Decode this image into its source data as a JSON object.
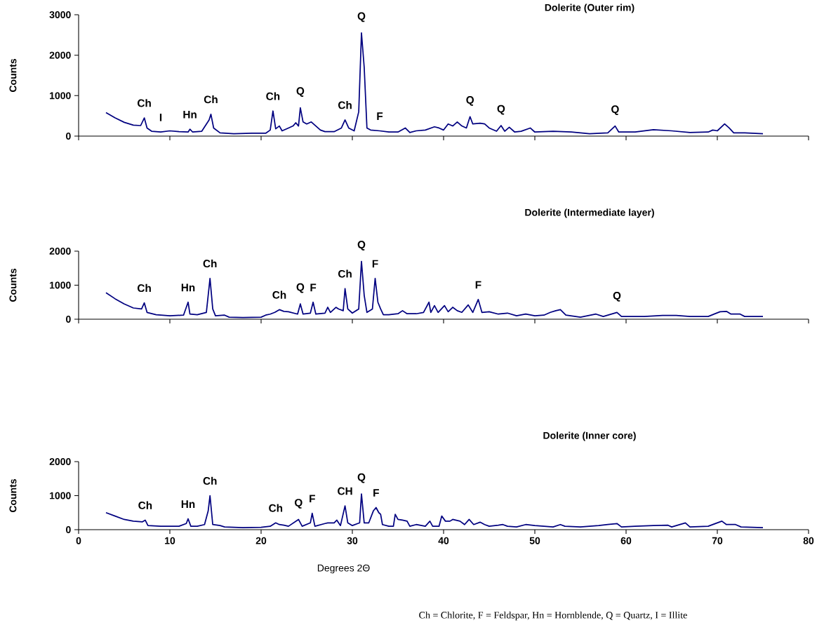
{
  "chart_data": [
    {
      "type": "line",
      "title": "Dolerite (Outer rim)",
      "ylabel": "Counts",
      "xlim": [
        0,
        80
      ],
      "xticks": [
        0,
        10,
        20,
        30,
        40,
        50,
        60,
        70,
        80
      ],
      "ylim": [
        0,
        3000
      ],
      "yticks": [
        0,
        1000,
        2000,
        3000
      ],
      "tick_labels": "y",
      "series": [
        {
          "color": "#000080",
          "x": [
            3,
            4,
            5,
            6,
            6.8,
            7.2,
            7.5,
            8,
            9,
            10,
            11,
            12,
            12.2,
            12.5,
            13.5,
            14.3,
            14.5,
            14.8,
            15.5,
            17,
            19,
            20.5,
            21,
            21.3,
            21.6,
            22,
            22.3,
            23,
            23.5,
            23.8,
            24.1,
            24.3,
            24.6,
            25,
            25.5,
            26,
            26.5,
            27,
            28,
            28.8,
            29.2,
            29.6,
            30.2,
            30.7,
            31.0,
            31.3,
            31.6,
            32,
            33,
            34,
            35,
            35.8,
            36.3,
            37,
            38,
            39,
            39.5,
            40,
            40.5,
            41,
            41.5,
            42,
            42.5,
            42.9,
            43.2,
            44,
            44.5,
            45,
            45.8,
            46.3,
            46.7,
            47.2,
            47.8,
            48.5,
            49.5,
            50,
            52,
            54,
            56,
            58,
            58.8,
            59.2,
            61,
            63,
            65,
            67,
            69,
            69.5,
            70,
            70.8,
            71.3,
            71.8,
            73,
            75
          ],
          "values": [
            580,
            450,
            340,
            270,
            260,
            450,
            200,
            120,
            100,
            130,
            110,
            100,
            170,
            100,
            120,
            400,
            540,
            200,
            80,
            60,
            70,
            70,
            150,
            620,
            180,
            250,
            130,
            200,
            250,
            330,
            250,
            700,
            350,
            300,
            350,
            250,
            150,
            110,
            110,
            200,
            400,
            200,
            130,
            600,
            2550,
            1700,
            200,
            150,
            130,
            100,
            100,
            200,
            90,
            130,
            150,
            230,
            200,
            150,
            300,
            250,
            350,
            250,
            200,
            480,
            300,
            320,
            300,
            200,
            120,
            260,
            120,
            220,
            100,
            120,
            200,
            100,
            120,
            100,
            60,
            80,
            250,
            100,
            100,
            160,
            130,
            90,
            100,
            150,
            130,
            300,
            200,
            80,
            80,
            60
          ]
        }
      ],
      "annotations": [
        {
          "text": "Ch",
          "x": 7.2,
          "y": 450
        },
        {
          "text": "I",
          "x": 9,
          "y": 100
        },
        {
          "text": "Hn",
          "x": 12.2,
          "y": 170
        },
        {
          "text": "Ch",
          "x": 14.5,
          "y": 540
        },
        {
          "text": "Ch",
          "x": 21.3,
          "y": 620
        },
        {
          "text": "Q",
          "x": 24.3,
          "y": 700
        },
        {
          "text": "Ch",
          "x": 29.2,
          "y": 400
        },
        {
          "text": "Q",
          "x": 31.0,
          "y": 2550
        },
        {
          "text": "F",
          "x": 33,
          "y": 130
        },
        {
          "text": "Q",
          "x": 42.9,
          "y": 480
        },
        {
          "text": "Q",
          "x": 46.3,
          "y": 260
        },
        {
          "text": "Q",
          "x": 58.8,
          "y": 250
        }
      ]
    },
    {
      "type": "line",
      "title": "Dolerite (Intermediate layer)",
      "ylabel": "Counts",
      "xlim": [
        0,
        80
      ],
      "xticks": [
        0,
        10,
        20,
        30,
        40,
        50,
        60,
        70,
        80
      ],
      "ylim": [
        0,
        2000
      ],
      "yticks": [
        0,
        1000,
        2000
      ],
      "tick_labels": "y",
      "series": [
        {
          "color": "#000080",
          "x": [
            3,
            4,
            5,
            6,
            6.9,
            7.2,
            7.5,
            8.5,
            10,
            11.5,
            12,
            12.2,
            13,
            14,
            14.4,
            14.7,
            15,
            16,
            16.5,
            18,
            20,
            20.5,
            21,
            21.5,
            22,
            22.5,
            23,
            24,
            24.3,
            24.6,
            25.4,
            25.7,
            26,
            27,
            27.3,
            27.6,
            28.2,
            28.5,
            29,
            29.2,
            29.5,
            30,
            30.7,
            31.0,
            31.3,
            31.6,
            32.2,
            32.5,
            32.8,
            33.1,
            33.4,
            34,
            35,
            35.5,
            36,
            37,
            37.8,
            38.4,
            38.6,
            39,
            39.4,
            40.1,
            40.5,
            41,
            41.5,
            42,
            42.7,
            43.2,
            43.8,
            44.2,
            45,
            46,
            47,
            48,
            49,
            50,
            51,
            51.7,
            52.3,
            52.8,
            53.4,
            55,
            56.7,
            57.5,
            59,
            59.5,
            62,
            64,
            65.5,
            67,
            69,
            70.3,
            71,
            71.5,
            72.5,
            73,
            75
          ],
          "values": [
            780,
            600,
            450,
            330,
            300,
            480,
            200,
            130,
            100,
            120,
            500,
            150,
            130,
            200,
            1200,
            300,
            100,
            120,
            60,
            50,
            60,
            120,
            150,
            200,
            280,
            230,
            220,
            150,
            450,
            150,
            180,
            500,
            150,
            180,
            350,
            200,
            350,
            300,
            250,
            900,
            300,
            180,
            300,
            1700,
            700,
            200,
            300,
            1200,
            500,
            300,
            130,
            130,
            160,
            250,
            160,
            160,
            200,
            500,
            200,
            400,
            200,
            400,
            220,
            350,
            250,
            200,
            420,
            200,
            580,
            200,
            220,
            150,
            180,
            100,
            150,
            100,
            120,
            200,
            250,
            280,
            120,
            60,
            150,
            80,
            200,
            80,
            80,
            110,
            110,
            80,
            80,
            220,
            230,
            150,
            150,
            80,
            80
          ]
        }
      ],
      "annotations": [
        {
          "text": "Ch",
          "x": 7.2,
          "y": 480
        },
        {
          "text": "Hn",
          "x": 12,
          "y": 500
        },
        {
          "text": "Ch",
          "x": 14.4,
          "y": 1200
        },
        {
          "text": "Ch",
          "x": 22,
          "y": 280
        },
        {
          "text": "Q",
          "x": 24.3,
          "y": 450
        },
        {
          "text": "F",
          "x": 25.7,
          "y": 500
        },
        {
          "text": "Ch",
          "x": 29.2,
          "y": 900
        },
        {
          "text": "Q",
          "x": 31.0,
          "y": 1700
        },
        {
          "text": "F",
          "x": 32.5,
          "y": 1200
        },
        {
          "text": "F",
          "x": 43.8,
          "y": 580
        },
        {
          "text": "Q",
          "x": 59,
          "y": 200
        }
      ]
    },
    {
      "type": "line",
      "title": "Dolerite (Inner core)",
      "ylabel": "Counts",
      "xlabel": "Degrees 2Θ",
      "xlim": [
        0,
        80
      ],
      "xticks": [
        0,
        10,
        20,
        30,
        40,
        50,
        60,
        70,
        80
      ],
      "ylim": [
        0,
        2000
      ],
      "yticks": [
        0,
        1000,
        2000
      ],
      "series": [
        {
          "color": "#000080",
          "x": [
            3,
            4,
            5,
            6,
            7,
            7.3,
            7.6,
            9,
            11,
            11.8,
            12,
            12.3,
            13,
            13.8,
            14.2,
            14.4,
            14.7,
            15.5,
            16,
            18,
            20,
            21,
            21.6,
            22,
            22.5,
            23,
            24.1,
            24.5,
            25.4,
            25.6,
            25.9,
            27,
            27.3,
            28,
            28.3,
            28.7,
            29.2,
            29.5,
            30,
            30.8,
            31.0,
            31.3,
            31.8,
            32.3,
            32.6,
            32.9,
            33.1,
            33.3,
            34,
            34.5,
            34.7,
            35,
            35.5,
            36,
            36.3,
            37,
            38,
            38.5,
            38.8,
            39.5,
            39.8,
            40.2,
            40.7,
            41,
            41.8,
            42.3,
            42.8,
            43.3,
            44,
            44.5,
            45,
            46,
            46.5,
            47,
            48,
            49,
            50,
            52,
            52.8,
            53.3,
            55,
            57,
            58,
            59,
            59.5,
            61,
            63,
            64.6,
            65,
            66.5,
            67,
            69,
            70.5,
            71,
            72,
            72.6,
            75
          ],
          "values": [
            500,
            400,
            300,
            250,
            230,
            280,
            120,
            100,
            100,
            180,
            320,
            100,
            100,
            150,
            550,
            1000,
            150,
            120,
            80,
            60,
            70,
            100,
            200,
            150,
            130,
            100,
            300,
            100,
            200,
            480,
            100,
            180,
            200,
            200,
            280,
            120,
            700,
            200,
            120,
            200,
            1050,
            200,
            200,
            550,
            650,
            500,
            450,
            150,
            100,
            100,
            450,
            300,
            280,
            250,
            100,
            150,
            100,
            250,
            100,
            100,
            400,
            250,
            250,
            300,
            250,
            150,
            300,
            150,
            220,
            150,
            100,
            130,
            150,
            100,
            80,
            150,
            120,
            80,
            150,
            100,
            80,
            120,
            150,
            180,
            80,
            100,
            120,
            130,
            80,
            200,
            80,
            100,
            250,
            150,
            150,
            80,
            60
          ]
        }
      ],
      "annotations": [
        {
          "text": "Ch",
          "x": 7.3,
          "y": 280
        },
        {
          "text": "Hn",
          "x": 12,
          "y": 320
        },
        {
          "text": "Ch",
          "x": 14.4,
          "y": 1000
        },
        {
          "text": "Ch",
          "x": 21.6,
          "y": 200
        },
        {
          "text": "Q",
          "x": 24.1,
          "y": 300
        },
        {
          "text": "F",
          "x": 25.6,
          "y": 480
        },
        {
          "text": "CH",
          "x": 29.2,
          "y": 700
        },
        {
          "text": "Q",
          "x": 31.0,
          "y": 1050
        },
        {
          "text": "F",
          "x": 32.6,
          "y": 650
        },
        "Ch = Chlorite, F = Feldspar, Hn = Hornblende, Q = Quartz, I = Illite"
      ]
    }
  ]
}
